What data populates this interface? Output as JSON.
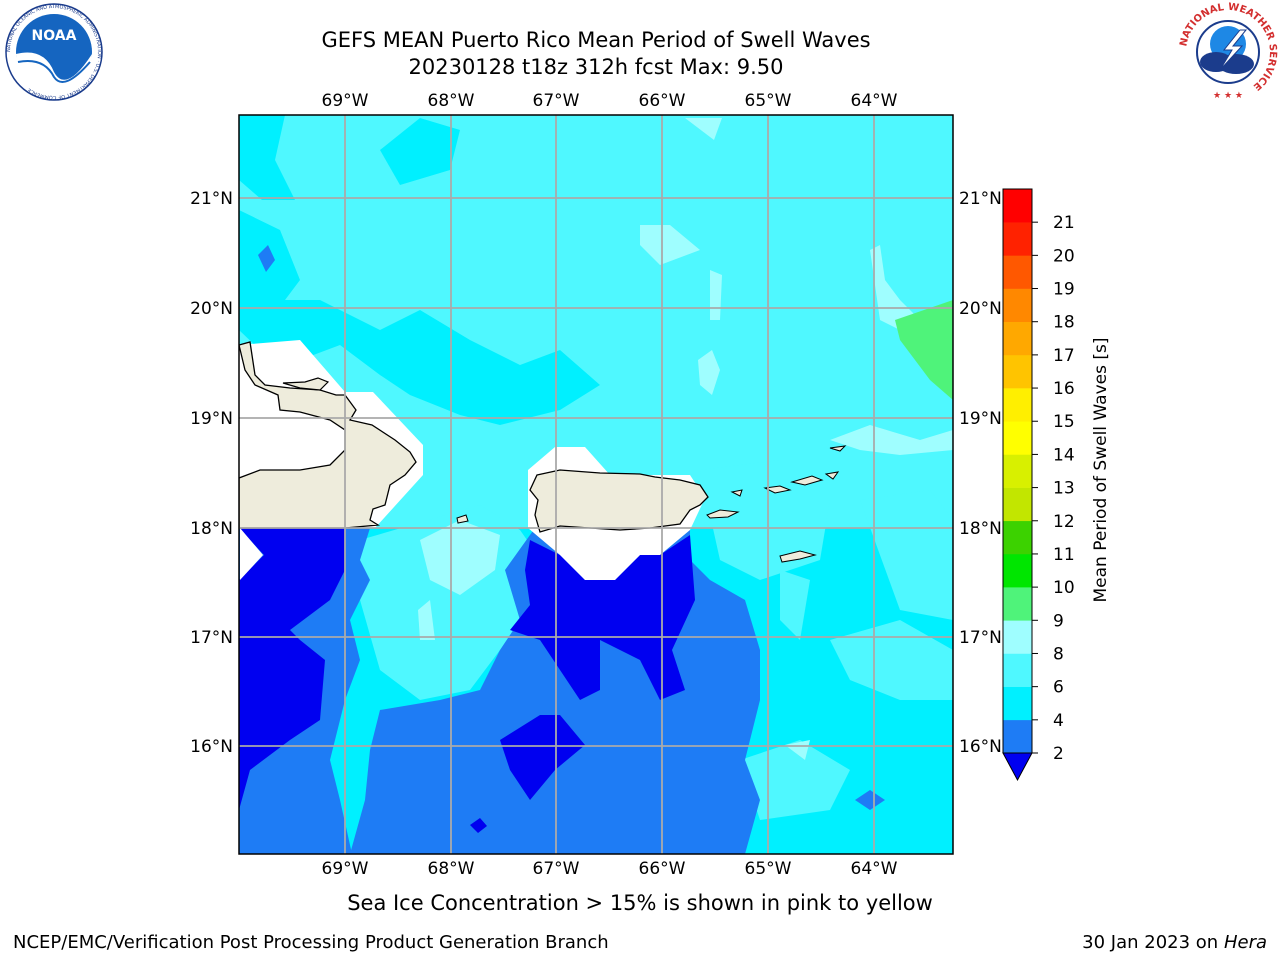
{
  "header": {
    "title": "GEFS MEAN Puerto Rico Mean Period of Swell Waves",
    "subtitle": "20230128 t18z 312h fcst   Max: 9.50"
  },
  "logos": {
    "left": {
      "name": "NOAA",
      "text": "NOAA",
      "ring_text": "NATIONAL OCEANIC AND ATMOSPHERIC ADMINISTRATION · U.S. DEPARTMENT OF COMMERCE"
    },
    "right": {
      "name": "National Weather Service",
      "ring_text": "NATIONAL WEATHER SERVICE"
    }
  },
  "map": {
    "lon_ticks": [
      "69°W",
      "68°W",
      "67°W",
      "66°W",
      "65°W",
      "64°W"
    ],
    "lat_ticks": [
      "21°N",
      "20°N",
      "19°N",
      "18°N",
      "17°N",
      "16°N"
    ],
    "grid": true,
    "land_color": "#eeecdc",
    "coast_color": "#000000"
  },
  "colorbar": {
    "label": "Mean Period of Swell Waves [s]",
    "ticks": [
      "2",
      "4",
      "6",
      "8",
      "9",
      "10",
      "11",
      "12",
      "13",
      "14",
      "15",
      "16",
      "17",
      "18",
      "19",
      "20",
      "21"
    ],
    "colors": [
      "#1e7cf5",
      "#00f0ff",
      "#4ff8ff",
      "#9ffeff",
      "#4ff37a",
      "#00e600",
      "#3cd200",
      "#c2e600",
      "#d8f000",
      "#ffff00",
      "#ffef00",
      "#ffc400",
      "#ffa800",
      "#ff8800",
      "#ff5800",
      "#ff2200",
      "#ff0000"
    ],
    "extend_below_color": "#0000f0"
  },
  "footer": {
    "ice_note": "Sea Ice Concentration > 15% is shown in pink to yellow",
    "credit": "NCEP/EMC/Verification Post Processing Product Generation Branch",
    "date_prefix": "30 Jan 2023 on ",
    "date_machine": "Hera"
  }
}
